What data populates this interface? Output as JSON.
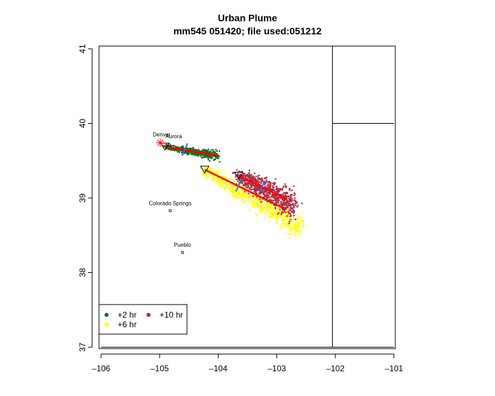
{
  "chart_data": {
    "type": "scatter",
    "title": "Urban Plume",
    "subtitle": "mm545 051420; file used:051212",
    "xlabel": "",
    "ylabel": "",
    "xlim": [
      -106,
      -101
    ],
    "ylim": [
      37,
      41
    ],
    "xticks": [
      "-106",
      "-105",
      "-104",
      "-103",
      "-102",
      "-101"
    ],
    "yticks": [
      "37",
      "38",
      "39",
      "40",
      "41"
    ],
    "legend_position": "bottom-left",
    "cities": [
      {
        "name": "Denver",
        "lon": -104.99,
        "lat": 39.74,
        "marker": "star"
      },
      {
        "name": "Aurora",
        "lon": -104.83,
        "lat": 39.71,
        "marker": "square"
      },
      {
        "name": "Colorado Springs",
        "lon": -104.82,
        "lat": 38.83,
        "marker": "square"
      },
      {
        "name": "Pueblo",
        "lon": -104.61,
        "lat": 38.27,
        "marker": "square"
      }
    ],
    "series": [
      {
        "name": "+2 hr",
        "color": "#1e6b1e",
        "start": [
          -104.91,
          39.69
        ],
        "end": [
          -104.0,
          39.56
        ],
        "spread": 0.03,
        "n": 500,
        "tick": [
          -104.57,
          39.65
        ]
      },
      {
        "name": "+6 hr",
        "color": "#ffff00",
        "start": [
          -104.23,
          39.38
        ],
        "end": [
          -102.6,
          38.6
        ],
        "spread": 0.07,
        "n": 700,
        "tick": [
          -103.65,
          39.17
        ]
      },
      {
        "name": "+10 hr",
        "color": "#b03048",
        "start": [
          -103.65,
          39.3
        ],
        "end": [
          -102.7,
          38.9
        ],
        "spread": 0.09,
        "n": 800,
        "tick": [
          -103.25,
          39.15
        ]
      }
    ],
    "trajectories": [
      {
        "name": "+2 hr",
        "points": [
          [
            -104.91,
            39.69
          ],
          [
            -104.0,
            39.57
          ]
        ]
      },
      {
        "name": "+6 hr",
        "points": [
          [
            -104.23,
            39.38
          ],
          [
            -102.85,
            38.85
          ]
        ]
      },
      {
        "name": "+10 hr",
        "points": [
          [
            -103.65,
            39.3
          ],
          [
            -102.82,
            38.98
          ]
        ]
      }
    ],
    "map_lines": [
      [
        [
          -102.05,
          41.04
        ],
        [
          -102.05,
          37.0
        ]
      ],
      [
        [
          -102.05,
          40.0
        ],
        [
          -101,
          40.0
        ]
      ],
      [
        [
          -106,
          37.0
        ],
        [
          -101,
          37.0
        ]
      ]
    ]
  }
}
